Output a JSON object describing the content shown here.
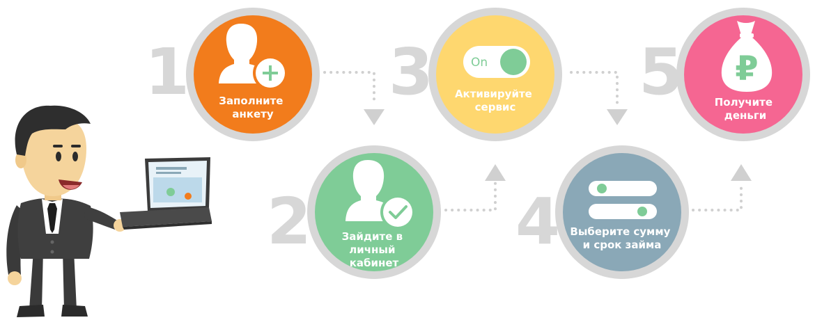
{
  "steps": [
    {
      "number": "1",
      "label_lines": [
        "Заполните",
        "анкету"
      ],
      "color": "#f27c1c",
      "icon": "user-add-icon"
    },
    {
      "number": "2",
      "label_lines": [
        "Зайдите в",
        "личный",
        "кабинет"
      ],
      "color": "#7fcc97",
      "icon": "user-check-icon"
    },
    {
      "number": "3",
      "label_lines": [
        "Активируйте",
        "сервис"
      ],
      "color": "#fed76f",
      "icon": "toggle-on-icon",
      "toggle_label": "On"
    },
    {
      "number": "4",
      "label_lines": [
        "Выберите сумму",
        "и срок займа"
      ],
      "color": "#8aa8b7",
      "icon": "sliders-icon"
    },
    {
      "number": "5",
      "label_lines": [
        "Получите",
        "деньги"
      ],
      "color": "#f56692",
      "icon": "money-bag-ruble-icon",
      "currency_symbol": "₽"
    }
  ],
  "colors": {
    "ring": "#d7d7d7",
    "number": "#d7d7d7",
    "connector": "#d0d0d0",
    "icon_fill": "#ffffff",
    "accent_green": "#7fcc97"
  },
  "illustration": {
    "icon": "businessman-with-laptop-illustration"
  }
}
